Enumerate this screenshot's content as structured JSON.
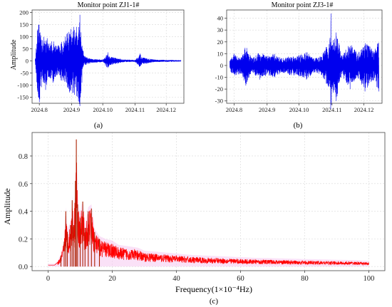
{
  "chart_data": [
    {
      "id": "a",
      "type": "line",
      "title": "Monitor point ZJ1-1#",
      "ylabel": "Amplitude",
      "xlabel": "",
      "panel_label": "(a)",
      "x_ticks": [
        "2024.8",
        "2024.9",
        "2024.10",
        "2024.11",
        "2024.12"
      ],
      "xlim": [
        "2024.7.25",
        "2024.12.18"
      ],
      "y_ticks": [
        -150,
        -100,
        -50,
        0,
        50,
        100,
        150,
        200
      ],
      "ylim": [
        -175,
        210
      ],
      "grid": true,
      "series": [
        {
          "color": "#0000ee",
          "points": [
            [
              "2024.7.28",
              5
            ],
            [
              "2024.7.30",
              125
            ],
            [
              "2024.8.1",
              -170
            ],
            [
              "2024.8.4",
              85
            ],
            [
              "2024.8.7",
              -120
            ],
            [
              "2024.8.10",
              70
            ],
            [
              "2024.8.14",
              -90
            ],
            [
              "2024.8.18",
              60
            ],
            [
              "2024.8.22",
              -80
            ],
            [
              "2024.8.26",
              100
            ],
            [
              "2024.8.30",
              -130
            ],
            [
              "2024.9.3",
              140
            ],
            [
              "2024.9.6",
              -145
            ],
            [
              "2024.9.9",
              190
            ],
            [
              "2024.9.11",
              -90
            ],
            [
              "2024.9.13",
              20
            ],
            [
              "2024.9.20",
              8
            ],
            [
              "2024.10.1",
              5
            ],
            [
              "2024.10.6",
              35
            ],
            [
              "2024.10.7",
              -20
            ],
            [
              "2024.10.20",
              6
            ],
            [
              "2024.11.1",
              4
            ],
            [
              "2024.11.6",
              30
            ],
            [
              "2024.11.7",
              -15
            ],
            [
              "2024.11.20",
              5
            ],
            [
              "2024.12.15",
              3
            ]
          ]
        }
      ]
    },
    {
      "id": "b",
      "type": "line",
      "title": "Monitor point ZJ3-1#",
      "ylabel": "",
      "xlabel": "",
      "panel_label": "(b)",
      "x_ticks": [
        "2024.8",
        "2024.9",
        "2024.10",
        "2024.11",
        "2024.12"
      ],
      "xlim": [
        "2024.7.25",
        "2024.12.18"
      ],
      "y_ticks": [
        -30,
        -20,
        -10,
        0,
        10,
        20,
        30,
        40
      ],
      "ylim": [
        -32,
        47
      ],
      "grid": true,
      "series": [
        {
          "color": "#0000ee",
          "points": [
            [
              "2024.7.28",
              4
            ],
            [
              "2024.8.1",
              10
            ],
            [
              "2024.8.3",
              -8
            ],
            [
              "2024.8.8",
              7
            ],
            [
              "2024.8.12",
              -17
            ],
            [
              "2024.8.18",
              6
            ],
            [
              "2024.8.25",
              -12
            ],
            [
              "2024.9.1",
              8
            ],
            [
              "2024.9.8",
              -10
            ],
            [
              "2024.9.15",
              6
            ],
            [
              "2024.9.22",
              -8
            ],
            [
              "2024.10.1",
              9
            ],
            [
              "2024.10.8",
              -12
            ],
            [
              "2024.10.15",
              6
            ],
            [
              "2024.10.22",
              -8
            ],
            [
              "2024.10.30",
              22
            ],
            [
              "2024.10.31",
              44
            ],
            [
              "2024.11.1",
              -20
            ],
            [
              "2024.11.5",
              -30
            ],
            [
              "2024.11.10",
              8
            ],
            [
              "2024.11.18",
              -20
            ],
            [
              "2024.11.25",
              10
            ],
            [
              "2024.12.2",
              -22
            ],
            [
              "2024.12.10",
              12
            ],
            [
              "2024.12.15",
              -22
            ]
          ]
        }
      ]
    },
    {
      "id": "c",
      "type": "line",
      "title": "",
      "ylabel": "Amplitude",
      "xlabel": "Frequency(1×10⁻⁴Hz)",
      "panel_label": "(c)",
      "x_ticks": [
        0,
        20,
        40,
        60,
        80,
        100
      ],
      "xlim": [
        -5,
        105
      ],
      "y_ticks": [
        0.0,
        0.2,
        0.4,
        0.6,
        0.8
      ],
      "y_tick_labels": [
        "0.0",
        "0.2",
        "0.4",
        "0.6",
        "0.8"
      ],
      "ylim": [
        -0.03,
        0.97
      ],
      "grid": true,
      "series": [
        {
          "color": "#ff0000",
          "peak_color": "#aa2200",
          "points": [
            [
              0,
              0.01
            ],
            [
              2,
              0.01
            ],
            [
              3,
              0.03
            ],
            [
              4,
              0.08
            ],
            [
              5,
              0.18
            ],
            [
              5.5,
              0.4
            ],
            [
              6,
              0.25
            ],
            [
              7,
              0.3
            ],
            [
              7.5,
              0.48
            ],
            [
              8,
              0.3
            ],
            [
              8.5,
              0.62
            ],
            [
              8.8,
              0.92
            ],
            [
              9.2,
              0.45
            ],
            [
              10,
              0.35
            ],
            [
              10.8,
              0.47
            ],
            [
              11.5,
              0.28
            ],
            [
              12.5,
              0.4
            ],
            [
              13.5,
              0.42
            ],
            [
              14.5,
              0.25
            ],
            [
              16,
              0.2
            ],
            [
              18,
              0.18
            ],
            [
              20,
              0.17
            ],
            [
              22,
              0.14
            ],
            [
              25,
              0.13
            ],
            [
              28,
              0.12
            ],
            [
              30,
              0.1
            ],
            [
              35,
              0.09
            ],
            [
              40,
              0.08
            ],
            [
              45,
              0.07
            ],
            [
              50,
              0.065
            ],
            [
              55,
              0.06
            ],
            [
              60,
              0.055
            ],
            [
              65,
              0.05
            ],
            [
              70,
              0.048
            ],
            [
              75,
              0.045
            ],
            [
              80,
              0.042
            ],
            [
              85,
              0.04
            ],
            [
              90,
              0.037
            ],
            [
              95,
              0.035
            ],
            [
              100,
              0.03
            ]
          ]
        }
      ]
    }
  ]
}
